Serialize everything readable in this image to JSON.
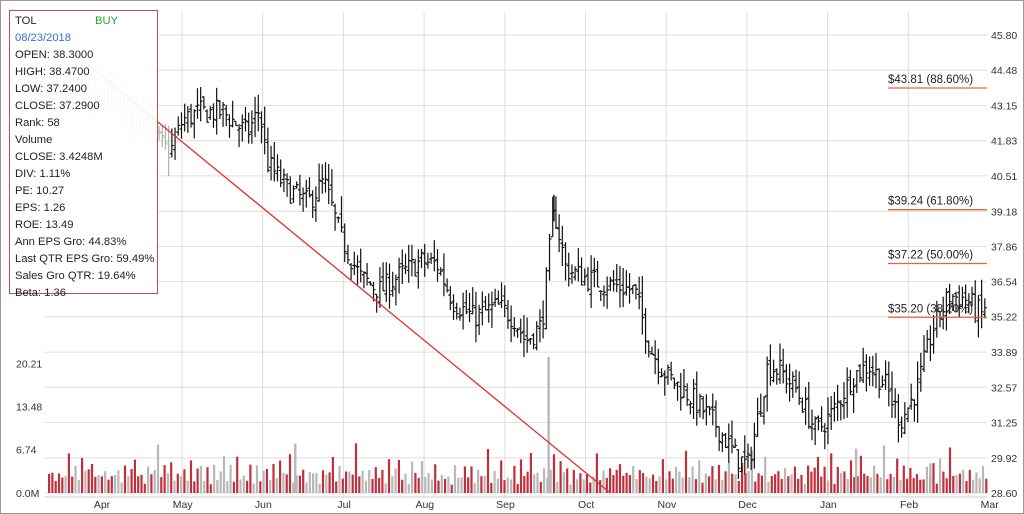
{
  "info": {
    "ticker": "TOL",
    "signal": "BUY",
    "date": "08/23/2018",
    "lines": [
      "OPEN: 38.3000",
      "HIGH: 38.4700",
      "LOW: 37.2400",
      "CLOSE: 37.2900",
      "Rank: 58",
      "Volume",
      "CLOSE: 3.4248M",
      "DIV: 1.11%",
      "PE: 10.27",
      "EPS: 1.26",
      "ROE: 13.49",
      "Ann EPS Gro: 44.83%",
      "Last QTR EPS Gro: 59.49%",
      "Sales Gro QTR: 19.64%",
      "Beta: 1.36"
    ]
  },
  "colors": {
    "price_bar": "#111111",
    "volume_up": "#c0303c",
    "volume_down": "#b8b8b8",
    "trendline": "#e0312b",
    "fib_line": "#e06a3a",
    "grid": "#dedede"
  },
  "chart_data": {
    "type": "ohlc",
    "x_tick_labels": [
      "Apr",
      "May",
      "Jun",
      "Jul",
      "Aug",
      "Sep",
      "Oct",
      "Nov",
      "Dec",
      "Jan",
      "Feb",
      "Mar"
    ],
    "price_axis": {
      "labels": [
        "45.80",
        "44.48",
        "43.15",
        "41.83",
        "40.51",
        "39.18",
        "37.86",
        "36.54",
        "35.22",
        "33.89",
        "32.57",
        "31.25",
        "29.92",
        "28.60"
      ],
      "ylim": [
        28.6,
        45.8
      ]
    },
    "volume_axis": {
      "labels": [
        "20.21",
        "13.48",
        "6.74",
        "0.0M"
      ],
      "ylim_millions": [
        0,
        26.95
      ]
    },
    "fib_levels": [
      {
        "label": "$43.81 (88.60%)",
        "price": 43.81
      },
      {
        "label": "$39.24 (61.80%)",
        "price": 39.24
      },
      {
        "label": "$37.22 (50.00%)",
        "price": 37.22
      },
      {
        "label": "$35.20 (38.20%)",
        "price": 35.2
      }
    ],
    "trendline": {
      "start": {
        "month_pos": -0.3,
        "price": 45.0
      },
      "end": {
        "month_pos": 6.3,
        "price": 28.6
      }
    },
    "price_keyframes": [
      [
        -0.8,
        43.8
      ],
      [
        -0.5,
        43.5
      ],
      [
        -0.2,
        43.2
      ],
      [
        0.1,
        43.6
      ],
      [
        0.3,
        42.8
      ],
      [
        0.5,
        43.1
      ],
      [
        0.7,
        41.8
      ],
      [
        0.85,
        41.4
      ],
      [
        1.0,
        42.6
      ],
      [
        1.2,
        42.9
      ],
      [
        1.5,
        42.9
      ],
      [
        1.8,
        42.1
      ],
      [
        1.95,
        43.0
      ],
      [
        2.05,
        41.0
      ],
      [
        2.3,
        40.0
      ],
      [
        2.55,
        39.5
      ],
      [
        2.75,
        40.3
      ],
      [
        2.95,
        38.3
      ],
      [
        3.2,
        36.7
      ],
      [
        3.45,
        36.2
      ],
      [
        3.7,
        36.8
      ],
      [
        3.95,
        37.3
      ],
      [
        4.15,
        37.2
      ],
      [
        4.35,
        35.8
      ],
      [
        4.6,
        35.2
      ],
      [
        4.9,
        35.6
      ],
      [
        5.1,
        35.2
      ],
      [
        5.25,
        34.3
      ],
      [
        5.45,
        34.9
      ],
      [
        5.6,
        39.3
      ],
      [
        5.75,
        37.0
      ],
      [
        6.05,
        36.6
      ],
      [
        6.35,
        36.4
      ],
      [
        6.6,
        36.2
      ],
      [
        6.8,
        34.0
      ],
      [
        7.0,
        33.0
      ],
      [
        7.3,
        32.2
      ],
      [
        7.6,
        31.2
      ],
      [
        7.85,
        30.0
      ],
      [
        8.0,
        29.6
      ],
      [
        8.1,
        31.0
      ],
      [
        8.25,
        33.4
      ],
      [
        8.4,
        33.2
      ],
      [
        8.6,
        32.5
      ],
      [
        8.85,
        30.9
      ],
      [
        9.05,
        31.6
      ],
      [
        9.3,
        33.0
      ],
      [
        9.5,
        33.4
      ],
      [
        9.7,
        32.7
      ],
      [
        9.9,
        31.3
      ],
      [
        10.1,
        32.5
      ],
      [
        10.3,
        34.8
      ],
      [
        10.5,
        36.0
      ],
      [
        10.7,
        35.9
      ],
      [
        10.9,
        35.3
      ],
      [
        11.1,
        37.0
      ],
      [
        11.3,
        36.9
      ],
      [
        11.55,
        37.2
      ],
      [
        11.75,
        37.0
      ],
      [
        11.9,
        35.9
      ],
      [
        12.05,
        35.2
      ]
    ],
    "spike_bars": [
      {
        "month_pos": 5.6,
        "open": 39.4,
        "high": 39.8,
        "low": 38.8,
        "close": 38.9
      }
    ],
    "volume_pattern_millions": [
      2.6,
      3.4,
      1.8,
      4.1,
      2.2,
      3.0,
      5.2,
      2.4,
      3.6,
      1.9,
      4.4,
      2.8,
      3.2,
      6.1,
      2.1,
      3.9,
      2.5,
      4.8,
      1.7,
      3.3
    ],
    "volume_spikes": [
      {
        "month_pos": 2.38,
        "value": 7.7
      },
      {
        "month_pos": 5.52,
        "value": 21.2
      },
      {
        "month_pos": 9.33,
        "value": 6.9
      },
      {
        "month_pos": 10.25,
        "value": 4.6
      },
      {
        "month_pos": 11.7,
        "value": 3.2
      }
    ]
  }
}
